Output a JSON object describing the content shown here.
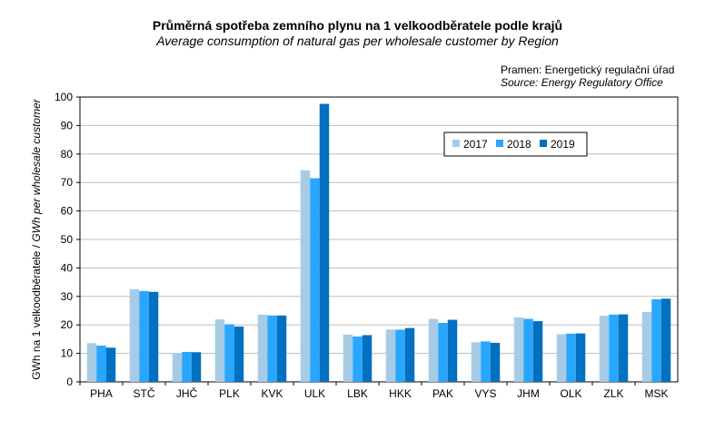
{
  "title": "Průměrná spotřeba zemního plynu na 1 velkoodběratele podle krajů",
  "subtitle": "Average consumption of natural gas per wholesale customer by Region",
  "source_cz": "Pramen: Energetický regulační úřad",
  "source_en": "Source: Energy Regulatory Office",
  "chart_data": {
    "type": "bar",
    "title": "Průměrná spotřeba zemního plynu na 1 velkoodběratele podle krajů",
    "xlabel": "",
    "ylabel": "GWh na 1 velkoodběratele / GWh per wholesale customer",
    "ylim": [
      0,
      100
    ],
    "yticks": [
      0,
      10,
      20,
      30,
      40,
      50,
      60,
      70,
      80,
      90,
      100
    ],
    "grid": true,
    "legend": "top-right",
    "categories": [
      "PHA",
      "STČ",
      "JHČ",
      "PLK",
      "KVK",
      "ULK",
      "LBK",
      "HKK",
      "PAK",
      "VYS",
      "JHM",
      "OLK",
      "ZLK",
      "MSK"
    ],
    "series": [
      {
        "name": "2017",
        "color": "#a6cbe6",
        "values": [
          13.6,
          32.5,
          10.0,
          21.9,
          23.6,
          74.3,
          16.6,
          18.4,
          22.1,
          13.9,
          22.6,
          16.7,
          23.2,
          24.5
        ]
      },
      {
        "name": "2018",
        "color": "#29a6ff",
        "values": [
          12.7,
          31.9,
          10.5,
          20.2,
          23.3,
          71.5,
          15.9,
          18.3,
          20.7,
          14.2,
          22.1,
          16.9,
          23.6,
          29.0
        ]
      },
      {
        "name": "2019",
        "color": "#0070c0",
        "values": [
          12.0,
          31.6,
          10.4,
          19.4,
          23.3,
          97.6,
          16.4,
          18.9,
          21.8,
          13.7,
          21.3,
          17.0,
          23.7,
          29.2
        ]
      }
    ]
  }
}
